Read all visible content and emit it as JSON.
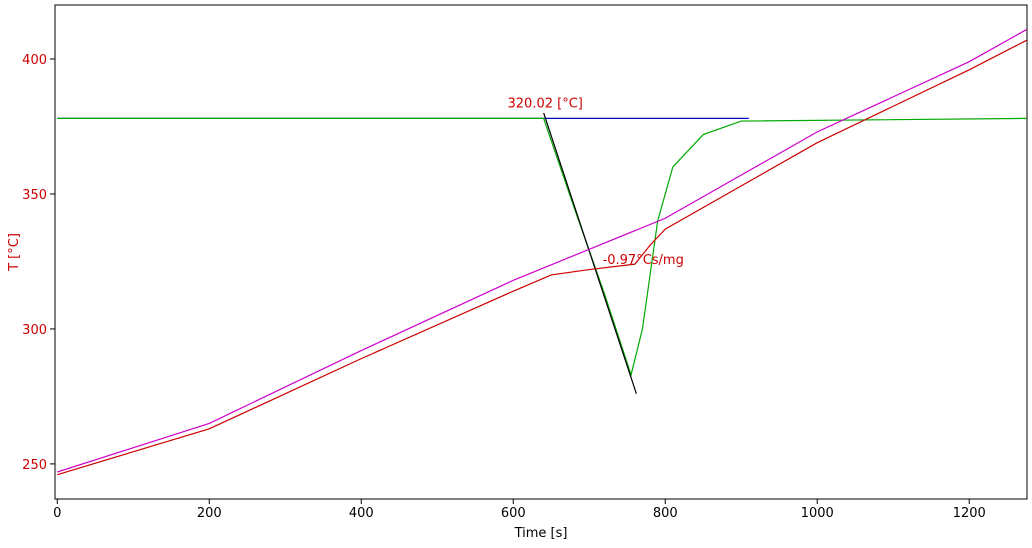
{
  "chart_data": {
    "type": "line",
    "xlabel": "Time [s]",
    "ylabel": "T  [°C]",
    "xlim": [
      -3,
      1276
    ],
    "ylim": [
      237,
      420
    ],
    "xticks": [
      0,
      200,
      400,
      600,
      800,
      1000,
      1200
    ],
    "yticks": [
      250,
      300,
      350,
      400
    ],
    "series": [
      {
        "color": "#0000cc",
        "x": [
          0,
          910
        ],
        "values": [
          378,
          378
        ]
      },
      {
        "color": "#00aa00",
        "x": [
          0,
          640,
          680,
          720,
          755,
          770,
          790,
          810,
          850,
          900,
          1276
        ],
        "values": [
          378,
          378,
          345,
          313,
          283,
          300,
          340,
          360,
          372,
          377,
          378
        ]
      },
      {
        "color": "#000000",
        "x": [
          640,
          762
        ],
        "values": [
          380,
          276
        ]
      },
      {
        "color": "#cc00cc",
        "x": [
          0,
          200,
          400,
          600,
          800,
          1000,
          1200,
          1276
        ],
        "values": [
          247,
          265,
          292,
          318,
          341,
          373,
          399,
          411
        ]
      },
      {
        "color": "#cc0000",
        "x": [
          0,
          200,
          400,
          600,
          650,
          700,
          760,
          780,
          800,
          900,
          1000,
          1200,
          1276
        ],
        "values": [
          246,
          263,
          289,
          314,
          320,
          322,
          324,
          331,
          337,
          353,
          369,
          396,
          407
        ]
      }
    ],
    "annotations": [
      {
        "text": "320.02 [°C]",
        "x": 642,
        "y": 382
      },
      {
        "text": "-0.97°Cs/mg",
        "x": 771,
        "y": 324
      }
    ]
  }
}
